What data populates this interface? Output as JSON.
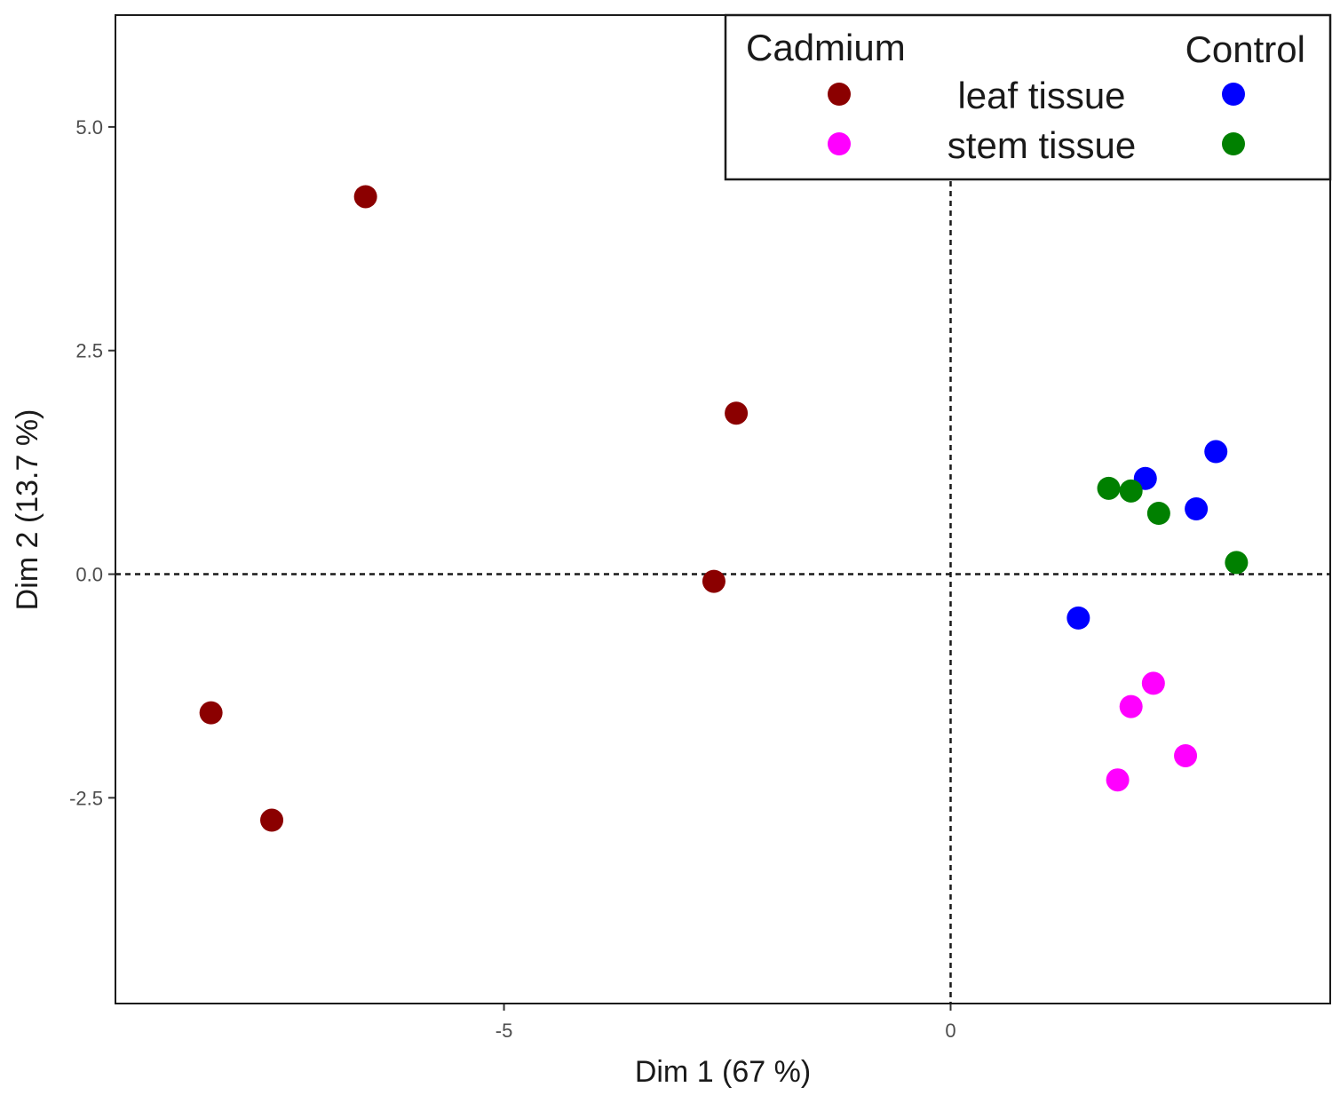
{
  "chart_data": {
    "type": "scatter",
    "xlabel": "Dim 1 (67 %)",
    "ylabel": "Dim 2 (13.7 %)",
    "xlim": [
      -9.35,
      4.25
    ],
    "ylim": [
      -4.8,
      6.25
    ],
    "x_ticks": [
      {
        "value": -5,
        "label": "-5"
      },
      {
        "value": 0,
        "label": "0"
      }
    ],
    "y_ticks": [
      {
        "value": 5.0,
        "label": "5.0"
      },
      {
        "value": 2.5,
        "label": "2.5"
      },
      {
        "value": 0.0,
        "label": "0.0"
      },
      {
        "value": -2.5,
        "label": "-2.5"
      }
    ],
    "reference_lines": {
      "x": 0,
      "y": 0
    },
    "legend": {
      "placement": "top-right",
      "col_headers": {
        "cadmium": "Cadmium",
        "control": "Control"
      },
      "rows": [
        {
          "label": "leaf tissue",
          "cadmium_color": "#8b0000",
          "control_color": "#0000ff"
        },
        {
          "label": "stem tissue",
          "cadmium_color": "#ff00ff",
          "control_color": "#008000"
        }
      ]
    },
    "series": [
      {
        "name": "Cadmium leaf tissue",
        "color": "#8b0000",
        "x": [
          -6.55,
          -2.4,
          -2.65,
          -8.28,
          -7.6
        ],
        "y": [
          4.22,
          1.8,
          -0.08,
          -1.55,
          -2.75
        ]
      },
      {
        "name": "Control leaf tissue",
        "color": "#0000ff",
        "x": [
          2.97,
          2.18,
          2.75,
          1.43
        ],
        "y": [
          1.37,
          1.07,
          0.73,
          -0.49
        ]
      },
      {
        "name": "Cadmium stem tissue",
        "color": "#ff00ff",
        "x": [
          2.27,
          2.02,
          2.63,
          1.87
        ],
        "y": [
          -1.22,
          -1.48,
          -2.03,
          -2.3
        ]
      },
      {
        "name": "Control stem tissue",
        "color": "#008000",
        "x": [
          1.77,
          2.02,
          2.33,
          3.2
        ],
        "y": [
          0.96,
          0.93,
          0.68,
          0.13
        ]
      }
    ]
  }
}
